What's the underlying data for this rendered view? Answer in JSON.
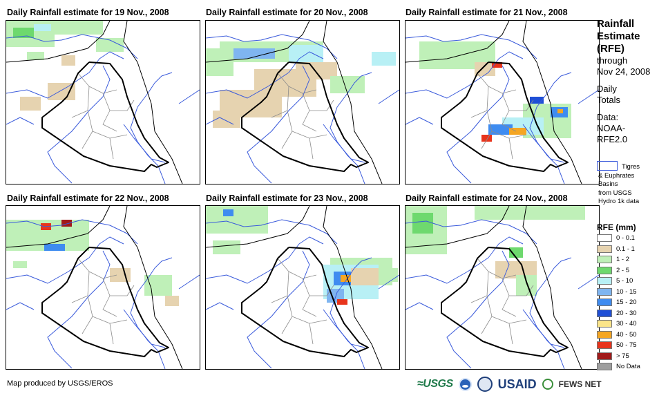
{
  "panels": [
    {
      "title": "Daily Rainfall estimate for 19 Nov., 2008"
    },
    {
      "title": "Daily Rainfall estimate for 20 Nov., 2008"
    },
    {
      "title": "Daily Rainfall estimate for 21 Nov., 2008"
    },
    {
      "title": "Daily Rainfall estimate for 22 Nov., 2008"
    },
    {
      "title": "Daily Rainfall estimate for 23 Nov., 2008"
    },
    {
      "title": "Daily Rainfall estimate for 24 Nov., 2008"
    }
  ],
  "sidebar": {
    "title_lines": [
      "Rainfall",
      "Estimate",
      "(RFE)"
    ],
    "through": "through",
    "date": "Nov 24, 2008",
    "totals_lines": [
      "Daily",
      "Totals"
    ],
    "data_lines": [
      "Data:",
      "NOAA-",
      "RFE2.0"
    ],
    "basin_lines": [
      "Tigres",
      "& Euphrates",
      "Basins",
      "from USGS",
      "Hydro 1k data"
    ]
  },
  "legend": {
    "title": "RFE (mm)",
    "items": [
      {
        "label": "0 - 0.1",
        "color": "#ffffff"
      },
      {
        "label": "0.1 - 1",
        "color": "#e6d3b0"
      },
      {
        "label": "1 - 2",
        "color": "#bff0b8"
      },
      {
        "label": "2 - 5",
        "color": "#6ed96e"
      },
      {
        "label": "5 - 10",
        "color": "#b8f0f5"
      },
      {
        "label": "10 - 15",
        "color": "#7fb5f0"
      },
      {
        "label": "15 - 20",
        "color": "#3f8cf0"
      },
      {
        "label": "20 - 30",
        "color": "#1f4fd6"
      },
      {
        "label": "30 - 40",
        "color": "#fbe58a"
      },
      {
        "label": "40 - 50",
        "color": "#f5a623"
      },
      {
        "label": "50 - 75",
        "color": "#e8341c"
      },
      {
        "label": "> 75",
        "color": "#a11a1a"
      },
      {
        "label": "No Data",
        "color": "#9e9e9e"
      }
    ]
  },
  "footer": {
    "credit": "Map produced by USGS/EROS",
    "logos": {
      "usgs": "≈USGS",
      "usaid": "USAID",
      "fews": "FEWS NET"
    }
  },
  "colors": {
    "river": "#3b5bdb",
    "border": "#000000",
    "admin": "#8c8c8c"
  }
}
